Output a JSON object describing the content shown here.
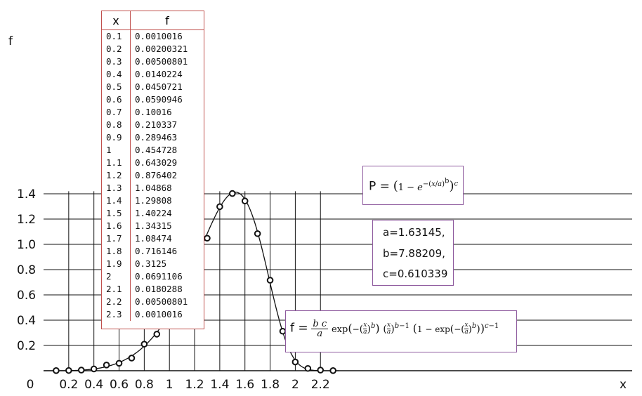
{
  "chart_data": {
    "type": "scatter",
    "xlabel": "x",
    "ylabel": "f",
    "xlim": [
      0,
      2.35
    ],
    "ylim": [
      0,
      1.42
    ],
    "xticks": [
      "0",
      "0.2",
      "0.4",
      "0.6",
      "0.8",
      "1",
      "1.2",
      "1.4",
      "1.6",
      "1.8",
      "2",
      "2.2"
    ],
    "yticks": [
      "0.2",
      "0.4",
      "0.6",
      "0.8",
      "1.0",
      "1.2",
      "1.4"
    ],
    "grid": true,
    "points": {
      "x": [
        0.1,
        0.2,
        0.3,
        0.4,
        0.5,
        0.6,
        0.7,
        0.8,
        0.9,
        1,
        1.1,
        1.2,
        1.3,
        1.4,
        1.5,
        1.6,
        1.7,
        1.8,
        1.9,
        2,
        2.1,
        2.2,
        2.3
      ],
      "y": [
        0.0010016,
        0.00200321,
        0.00500801,
        0.0140224,
        0.0450721,
        0.0590946,
        0.10016,
        0.210337,
        0.289463,
        0.454728,
        0.643029,
        0.876402,
        1.04868,
        1.29808,
        1.40224,
        1.34315,
        1.08474,
        0.716146,
        0.3125,
        0.0691106,
        0.0180288,
        0.00500801,
        0.0010016
      ]
    },
    "table": {
      "header_x": "x",
      "header_f": "f",
      "rows": [
        [
          "0.1",
          "0.0010016"
        ],
        [
          "0.2",
          "0.00200321"
        ],
        [
          "0.3",
          "0.00500801"
        ],
        [
          "0.4",
          "0.0140224"
        ],
        [
          "0.5",
          "0.0450721"
        ],
        [
          "0.6",
          "0.0590946"
        ],
        [
          "0.7",
          "0.10016"
        ],
        [
          "0.8",
          "0.210337"
        ],
        [
          "0.9",
          "0.289463"
        ],
        [
          "1",
          "0.454728"
        ],
        [
          "1.1",
          "0.643029"
        ],
        [
          "1.2",
          "0.876402"
        ],
        [
          "1.3",
          "1.04868"
        ],
        [
          "1.4",
          "1.29808"
        ],
        [
          "1.5",
          "1.40224"
        ],
        [
          "1.6",
          "1.34315"
        ],
        [
          "1.7",
          "1.08474"
        ],
        [
          "1.8",
          "0.716146"
        ],
        [
          "1.9",
          "0.3125"
        ],
        [
          "2",
          "0.0691106"
        ],
        [
          "2.1",
          "0.0180288"
        ],
        [
          "2.2",
          "0.00500801"
        ],
        [
          "2.3",
          "0.0010016"
        ]
      ]
    },
    "fit": {
      "model": "exponentiated Weibull",
      "a": 1.63145,
      "b": 7.88209,
      "c": 0.610339,
      "param_labels": [
        "a=1.63145,",
        "b=7.88209,",
        "c=0.610339"
      ],
      "cdf_lead": "P =",
      "pdf_lead": "f ="
    }
  }
}
